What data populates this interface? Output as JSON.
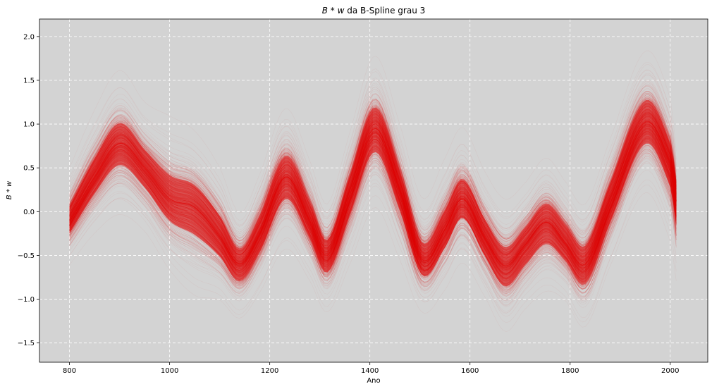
{
  "chart_data": {
    "type": "line",
    "title_main": "B * w",
    "title_rest": " da B-Spline grau 3",
    "xlabel": "Ano",
    "ylabel": "B * w",
    "xlim": [
      740,
      2075
    ],
    "ylim": [
      -1.72,
      2.2
    ],
    "xticks": [
      800,
      1000,
      1200,
      1400,
      1600,
      1800,
      2000
    ],
    "yticks": [
      -1.5,
      -1.0,
      -0.5,
      0.0,
      0.5,
      1.0,
      1.5,
      2.0
    ],
    "ytick_labels": [
      "−1.5",
      "−1.0",
      "−0.5",
      "0.0",
      "0.5",
      "1.0",
      "1.5",
      "2.0"
    ],
    "grid": true,
    "background_color": "#d3d3d3",
    "line_color": "#e00000",
    "series": [
      {
        "role": "central curve (center of dense sample band)",
        "x": [
          800,
          850,
          900,
          950,
          1000,
          1050,
          1100,
          1140,
          1180,
          1232,
          1280,
          1315,
          1360,
          1410,
          1460,
          1505,
          1550,
          1585,
          1630,
          1670,
          1710,
          1752,
          1790,
          1830,
          1880,
          1950,
          2000,
          2012
        ],
        "y": [
          -0.1,
          0.4,
          0.78,
          0.5,
          0.15,
          0.05,
          -0.28,
          -0.6,
          -0.25,
          0.4,
          -0.1,
          -0.5,
          0.2,
          0.95,
          0.25,
          -0.55,
          -0.2,
          0.15,
          -0.3,
          -0.62,
          -0.38,
          -0.12,
          -0.35,
          -0.6,
          0.1,
          1.02,
          0.55,
          0.12
        ]
      },
      {
        "role": "upper envelope",
        "x": [
          800,
          850,
          900,
          950,
          1000,
          1050,
          1100,
          1140,
          1180,
          1232,
          1280,
          1315,
          1360,
          1410,
          1460,
          1505,
          1550,
          1585,
          1630,
          1670,
          1710,
          1752,
          1790,
          1830,
          1880,
          1950,
          2000,
          2012
        ],
        "y": [
          0.45,
          1.1,
          1.55,
          1.2,
          1.05,
          0.9,
          0.5,
          0.0,
          0.45,
          1.2,
          0.6,
          0.1,
          0.9,
          1.75,
          0.95,
          0.1,
          0.55,
          0.9,
          0.4,
          0.1,
          0.3,
          0.6,
          0.35,
          0.1,
          0.85,
          1.85,
          1.3,
          0.7
        ]
      },
      {
        "role": "lower envelope",
        "x": [
          800,
          850,
          900,
          950,
          1000,
          1050,
          1100,
          1140,
          1180,
          1232,
          1280,
          1315,
          1360,
          1410,
          1460,
          1505,
          1550,
          1585,
          1630,
          1670,
          1710,
          1752,
          1790,
          1830,
          1880,
          1950,
          2000,
          2012
        ],
        "y": [
          -0.6,
          -0.25,
          -0.05,
          -0.25,
          -0.7,
          -1.0,
          -1.05,
          -1.25,
          -0.95,
          -0.45,
          -0.8,
          -1.15,
          -0.6,
          0.05,
          -0.55,
          -1.15,
          -0.9,
          -0.6,
          -1.0,
          -1.4,
          -1.15,
          -0.95,
          -1.05,
          -1.35,
          -0.65,
          0.2,
          -0.35,
          -0.8
        ]
      }
    ]
  }
}
